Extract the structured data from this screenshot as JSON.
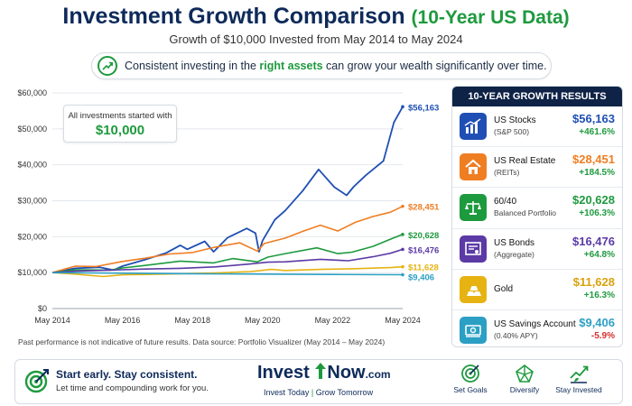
{
  "header": {
    "title_main": "Investment Growth Comparison",
    "title_accent": "(10-Year US Data)",
    "subtitle": "Growth of $10,000 Invested from May 2014 to May 2024"
  },
  "banner": {
    "icon": "growth-arrow-icon",
    "text_before": "Consistent investing in the ",
    "text_highlight": "right assets",
    "text_after": " can grow your wealth significantly over time."
  },
  "callout": {
    "line1": "All investments started with",
    "line2": "$10,000"
  },
  "disclaimer": "Past performance is not indicative of future results. Data source: Portfolio Visualizer (May 2014 – May 2024)",
  "results": {
    "heading": "10-YEAR GROWTH RESULTS",
    "items": [
      {
        "name": "US Stocks",
        "sub": "(S&P 500)",
        "value": "$56,163",
        "pct": "+461.6%",
        "color": "#1f4fb4",
        "pct_color": "#1e9a3e",
        "icon": "bar-chart-icon"
      },
      {
        "name": "US Real Estate",
        "sub": "(REITs)",
        "value": "$28,451",
        "pct": "+184.5%",
        "color": "#ef7d22",
        "pct_color": "#1e9a3e",
        "icon": "house-icon"
      },
      {
        "name": "60/40",
        "sub": "Balanced Portfolio",
        "value": "$20,628",
        "pct": "+106.3%",
        "color": "#1e9a3e",
        "pct_color": "#1e9a3e",
        "icon": "scale-icon"
      },
      {
        "name": "US Bonds",
        "sub": "(Aggregate)",
        "value": "$16,476",
        "pct": "+64.8%",
        "color": "#5b3aa6",
        "pct_color": "#1e9a3e",
        "icon": "certificate-icon"
      },
      {
        "name": "Gold",
        "sub": "",
        "value": "$11,628",
        "pct": "+16.3%",
        "color": "#e6b312",
        "pct_color": "#1e9a3e",
        "icon": "gold-bars-icon"
      },
      {
        "name": "US Savings Account",
        "sub": "(0.40% APY)",
        "value": "$9,406",
        "pct": "-5.9%",
        "color": "#2b9fc4",
        "pct_color": "#d62f2f",
        "icon": "bank-cash-icon"
      }
    ]
  },
  "footer": {
    "line1": "Start early. Stay consistent.",
    "line2": "Let time and compounding work for you.",
    "brand_invest": "Invest",
    "brand_now": "Now",
    "brand_domain": ".com",
    "tag_left": "Invest Today",
    "tag_sep": " | ",
    "tag_right": "Grow Tomorrow",
    "actions": [
      {
        "label": "Set Goals",
        "icon": "target-icon"
      },
      {
        "label": "Diversify",
        "icon": "network-icon"
      },
      {
        "label": "Stay Invested",
        "icon": "plant-growth-icon"
      }
    ]
  },
  "chart_data": {
    "type": "line",
    "title": "",
    "xlabel": "",
    "ylabel": "",
    "x_ticks": [
      "May 2014",
      "May 2016",
      "May 2018",
      "May 2020",
      "May 2022",
      "May 2024"
    ],
    "y_ticks": [
      "$60,000",
      "$50,000",
      "$40,000",
      "$30,000",
      "$20,000",
      "$10,000",
      "$0"
    ],
    "xlim": [
      2014.35,
      2024.35
    ],
    "ylim": [
      0,
      60000
    ],
    "grid": true,
    "series": [
      {
        "name": "US Stocks (S&P 500)",
        "end_label": "$56,163",
        "color": "#1f4fb4",
        "x": [
          2014.35,
          2015.0,
          2015.7,
          2016.1,
          2016.35,
          2017.0,
          2017.6,
          2018.0,
          2018.2,
          2018.7,
          2018.95,
          2019.35,
          2019.9,
          2020.15,
          2020.25,
          2020.35,
          2020.7,
          2021.0,
          2021.5,
          2021.95,
          2022.4,
          2022.75,
          2022.95,
          2023.3,
          2023.8,
          2024.1,
          2024.35
        ],
        "y": [
          10000,
          11200,
          11500,
          10700,
          11800,
          13600,
          15500,
          17600,
          16500,
          18700,
          15800,
          19700,
          22300,
          21000,
          15800,
          18900,
          24700,
          27300,
          32800,
          38700,
          33800,
          31500,
          33900,
          37100,
          41100,
          51800,
          56163
        ]
      },
      {
        "name": "US Real Estate (REITs)",
        "end_label": "$28,451",
        "color": "#ef7d22",
        "x": [
          2014.35,
          2015.0,
          2015.6,
          2016.35,
          2017.0,
          2017.7,
          2018.35,
          2019.0,
          2019.7,
          2020.2,
          2020.4,
          2021.0,
          2021.5,
          2022.0,
          2022.5,
          2023.0,
          2023.5,
          2024.0,
          2024.35
        ],
        "y": [
          10000,
          11800,
          11700,
          13100,
          14000,
          15200,
          15600,
          17100,
          18300,
          16000,
          18100,
          19600,
          21500,
          23200,
          21600,
          24000,
          25600,
          26800,
          28451
        ]
      },
      {
        "name": "60/40 Balanced Portfolio",
        "end_label": "$20,628",
        "color": "#1e9a3e",
        "x": [
          2014.35,
          2015.0,
          2016.0,
          2016.35,
          2017.0,
          2018.0,
          2018.95,
          2019.5,
          2020.2,
          2020.5,
          2021.0,
          2021.9,
          2022.5,
          2022.9,
          2023.5,
          2024.0,
          2024.35
        ],
        "y": [
          10000,
          10800,
          10700,
          11300,
          12000,
          13200,
          12700,
          13900,
          13000,
          14300,
          15300,
          16900,
          15300,
          15700,
          17300,
          19300,
          20628
        ]
      },
      {
        "name": "US Bonds (Aggregate)",
        "end_label": "$16,476",
        "color": "#5b3aa6",
        "x": [
          2014.35,
          2015.0,
          2016.0,
          2017.0,
          2018.0,
          2019.0,
          2020.0,
          2020.5,
          2021.0,
          2022.0,
          2022.8,
          2023.5,
          2024.0,
          2024.35
        ],
        "y": [
          10000,
          10400,
          10700,
          11000,
          11200,
          11600,
          12400,
          12900,
          13000,
          13700,
          13300,
          14400,
          15400,
          16476
        ]
      },
      {
        "name": "Gold",
        "end_label": "$11,628",
        "color": "#e6b312",
        "x": [
          2014.35,
          2015.0,
          2015.8,
          2016.35,
          2017.0,
          2018.0,
          2019.0,
          2020.0,
          2020.6,
          2021.0,
          2022.0,
          2023.0,
          2024.0,
          2024.35
        ],
        "y": [
          10000,
          9600,
          8900,
          9400,
          9500,
          9700,
          9900,
          10300,
          10900,
          10600,
          10900,
          11100,
          11400,
          11628
        ]
      },
      {
        "name": "US Savings Account (0.40% APY)",
        "end_label": "$9,406",
        "color": "#2b9fc4",
        "x": [
          2014.35,
          2016.35,
          2018.35,
          2020.35,
          2022.35,
          2024.35
        ],
        "y": [
          10000,
          9850,
          9700,
          9600,
          9500,
          9406
        ]
      }
    ]
  }
}
